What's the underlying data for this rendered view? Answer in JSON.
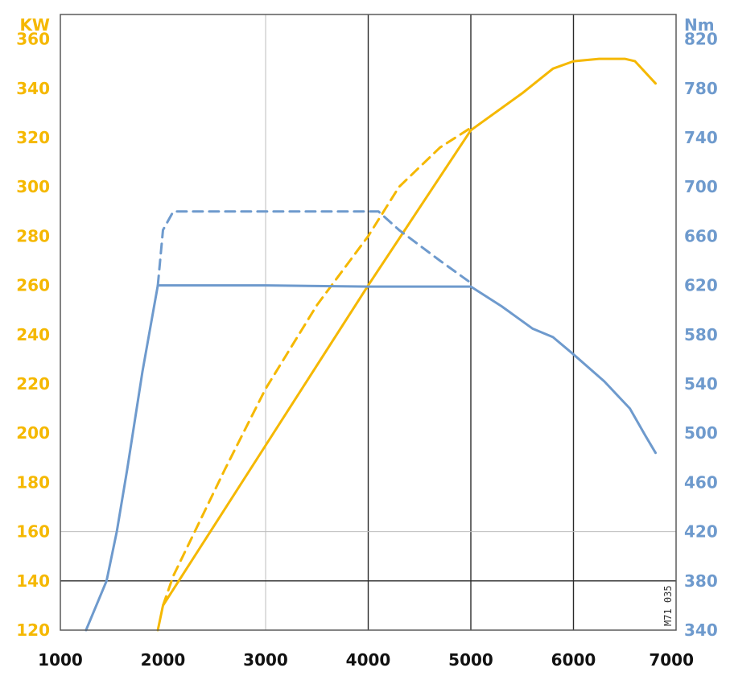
{
  "chart_data": {
    "type": "line",
    "left_axis": {
      "unit": "KW",
      "color": "#F5B800",
      "ylim": [
        120,
        370
      ],
      "ticks": [
        120,
        140,
        160,
        180,
        200,
        220,
        240,
        260,
        280,
        300,
        320,
        340,
        360
      ]
    },
    "right_axis": {
      "unit": "Nm",
      "color": "#6E9ACD",
      "ylim": [
        340,
        840
      ],
      "ticks": [
        340,
        380,
        420,
        460,
        500,
        540,
        580,
        620,
        660,
        700,
        740,
        780,
        820
      ]
    },
    "x_axis": {
      "xlim": [
        1000,
        7000
      ],
      "ticks": [
        1000,
        2000,
        3000,
        4000,
        5000,
        6000,
        7000
      ]
    },
    "grid": {
      "vertical": [
        {
          "x": 3000,
          "style": "light"
        },
        {
          "x": 4000,
          "style": "dark"
        },
        {
          "x": 5000,
          "style": "dark"
        },
        {
          "x": 6000,
          "style": "dark"
        }
      ],
      "horizontal": [
        {
          "y": 160,
          "style": "light"
        },
        {
          "y": 140,
          "style": "dark"
        }
      ]
    },
    "series": [
      {
        "axis": "left",
        "style": "solid",
        "color": "#F5B800",
        "points": [
          [
            1950,
            120
          ],
          [
            2000,
            130
          ],
          [
            3000,
            195
          ],
          [
            4000,
            260
          ],
          [
            5000,
            323
          ],
          [
            5500,
            338
          ],
          [
            5800,
            348
          ],
          [
            6000,
            351
          ],
          [
            6250,
            352
          ],
          [
            6500,
            352
          ],
          [
            6600,
            351
          ],
          [
            6800,
            342
          ]
        ]
      },
      {
        "axis": "left",
        "style": "dashed",
        "color": "#F5B800",
        "points": [
          [
            2000,
            130
          ],
          [
            2100,
            142
          ],
          [
            2600,
            185
          ],
          [
            3000,
            218
          ],
          [
            3500,
            252
          ],
          [
            4000,
            280
          ],
          [
            4300,
            300
          ],
          [
            4700,
            316
          ],
          [
            5000,
            324
          ]
        ]
      },
      {
        "axis": "right",
        "style": "solid",
        "color": "#6E9ACD",
        "points": [
          [
            1250,
            340
          ],
          [
            1450,
            380
          ],
          [
            1550,
            420
          ],
          [
            1650,
            470
          ],
          [
            1800,
            550
          ],
          [
            1950,
            620
          ],
          [
            3000,
            620
          ],
          [
            4000,
            619
          ],
          [
            5000,
            619
          ],
          [
            5300,
            603
          ],
          [
            5600,
            585
          ],
          [
            5800,
            578
          ],
          [
            6000,
            564
          ],
          [
            6300,
            542
          ],
          [
            6550,
            520
          ],
          [
            6700,
            498
          ],
          [
            6800,
            484
          ]
        ]
      },
      {
        "axis": "right",
        "style": "dashed",
        "color": "#6E9ACD",
        "points": [
          [
            1950,
            620
          ],
          [
            2000,
            665
          ],
          [
            2100,
            680
          ],
          [
            2500,
            680
          ],
          [
            3000,
            680
          ],
          [
            3500,
            680
          ],
          [
            4100,
            680
          ],
          [
            4300,
            665
          ],
          [
            4700,
            640
          ],
          [
            5000,
            622
          ]
        ]
      }
    ],
    "annotation": "M71 035"
  }
}
